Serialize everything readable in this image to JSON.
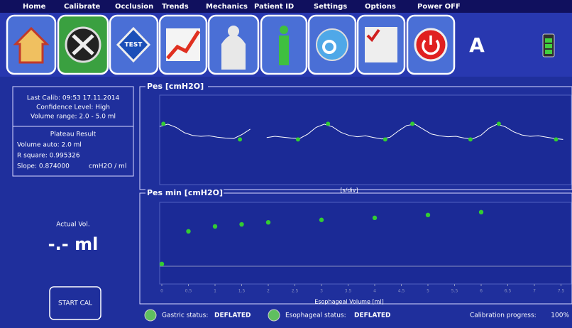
{
  "menu": [
    "Home",
    "Calibrate",
    "Occlusion",
    "Trends",
    "Mechanics",
    "Patient ID",
    "Settings",
    "Options",
    "Power OFF"
  ],
  "toolbar": {
    "test_icon": "TEST",
    "mode": "A"
  },
  "calibration": {
    "last_calib": "Last Calib: 09:53 17.11.2014",
    "confidence": "Confidence Level: High",
    "volume_range": "Volume range: 2.0 - 5.0 ml",
    "plateau_title": "Plateau Result",
    "volume_auto": "Volume auto: 2.0 ml",
    "r_square": "R square: 0.995326",
    "slope": "Slope: 0.874000",
    "slope_unit": "cmH2O / ml"
  },
  "actual_vol": {
    "label": "Actual Vol.",
    "value": "-.- ml"
  },
  "start_button": "START CAL",
  "pes_chart": {
    "type": "line",
    "title": "Pes [cmH2O]",
    "x_label": "[s/div]",
    "x": [
      0,
      2,
      4,
      6,
      8,
      10,
      12,
      14,
      16,
      18,
      20,
      22,
      24,
      26,
      28,
      30,
      32,
      34,
      36,
      38,
      40,
      42,
      44,
      46,
      48,
      50,
      52,
      54,
      56,
      58,
      60,
      62,
      64,
      66,
      68,
      70,
      72,
      74,
      76,
      78,
      80,
      82,
      84,
      86,
      88,
      90,
      92,
      94,
      96,
      98
    ],
    "values": [
      13.0,
      13.5,
      12.8,
      11.6,
      11.0,
      10.8,
      10.9,
      10.6,
      10.4,
      10.3,
      11.2,
      12.4,
      null,
      10.5,
      10.8,
      10.6,
      10.4,
      10.3,
      11.3,
      12.8,
      13.5,
      12.9,
      11.7,
      11.0,
      10.7,
      10.9,
      10.5,
      10.2,
      10.6,
      12.0,
      13.2,
      13.5,
      12.4,
      11.3,
      10.9,
      10.7,
      10.8,
      10.4,
      10.2,
      11.0,
      12.6,
      13.5,
      12.9,
      11.8,
      11.1,
      10.8,
      10.9,
      10.6,
      10.3,
      10.1
    ],
    "markers": {
      "x": [
        0.9,
        19.5,
        33.6,
        40.9,
        54.8,
        61.4,
        75.5,
        82.4,
        96.3
      ],
      "values": [
        13.6,
        10.1,
        10.1,
        13.6,
        10.1,
        13.6,
        10.1,
        13.6,
        10.1
      ]
    },
    "xlim": [
      0,
      100
    ],
    "ylim": [
      0,
      20
    ],
    "color": "#ffffff",
    "marker_color": "#33cc33"
  },
  "pes_min_chart": {
    "type": "scatter",
    "title": "Pes min [cmH2O]",
    "x_label": "Esophageal Volume [ml]",
    "x": [
      0,
      0.5,
      1,
      1.5,
      2,
      3,
      4,
      5,
      6
    ],
    "values": [
      4.9,
      12.9,
      14.1,
      14.6,
      15.1,
      15.7,
      16.2,
      16.9,
      17.6
    ],
    "xlim": [
      0,
      7.7
    ],
    "ylim": [
      0,
      20
    ],
    "xticks": [
      0,
      0.5,
      1,
      1.5,
      2,
      2.5,
      3,
      3.5,
      4,
      4.5,
      5,
      5.5,
      6,
      6.5,
      7,
      7.5
    ],
    "color": "#33cc33"
  },
  "status": {
    "gastric_label": "Gastric status:",
    "gastric": "DEFLATED",
    "esophageal_label": "Esophageal status:",
    "esophageal": "DEFLATED",
    "progress_label": "Calibration progress:",
    "progress": "100%"
  }
}
